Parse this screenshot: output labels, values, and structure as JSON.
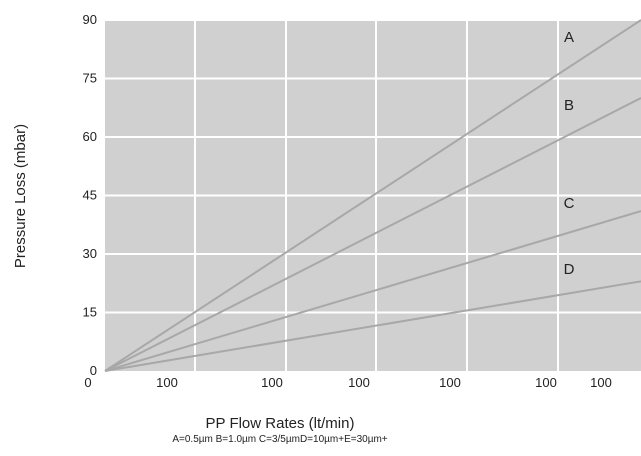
{
  "chart_data": {
    "type": "line",
    "title": "",
    "xlabel": "PP Flow Rates (lt/min)",
    "ylabel": "Pressure Loss (mbar)",
    "caption": "A=0.5µm B=1.0µm C=3/5µmD=10µm+E=30µm+",
    "x_tick_labels": [
      "0",
      "100",
      "100",
      "100",
      "100",
      "100",
      "100"
    ],
    "y_ticks": [
      0,
      15,
      30,
      45,
      60,
      75,
      90
    ],
    "ylim": [
      0,
      90
    ],
    "xlim": [
      0,
      6
    ],
    "grid": true,
    "plot_background": "#d0d0d0",
    "grid_color": "#ffffff",
    "line_color": "#a8a8a8",
    "series": [
      {
        "name": "A",
        "x": [
          0,
          6
        ],
        "y": [
          0,
          90
        ]
      },
      {
        "name": "B",
        "x": [
          0,
          6
        ],
        "y": [
          0,
          70
        ]
      },
      {
        "name": "C",
        "x": [
          0,
          6
        ],
        "y": [
          0,
          41
        ]
      },
      {
        "name": "D",
        "x": [
          0,
          6
        ],
        "y": [
          0,
          23
        ]
      }
    ]
  }
}
